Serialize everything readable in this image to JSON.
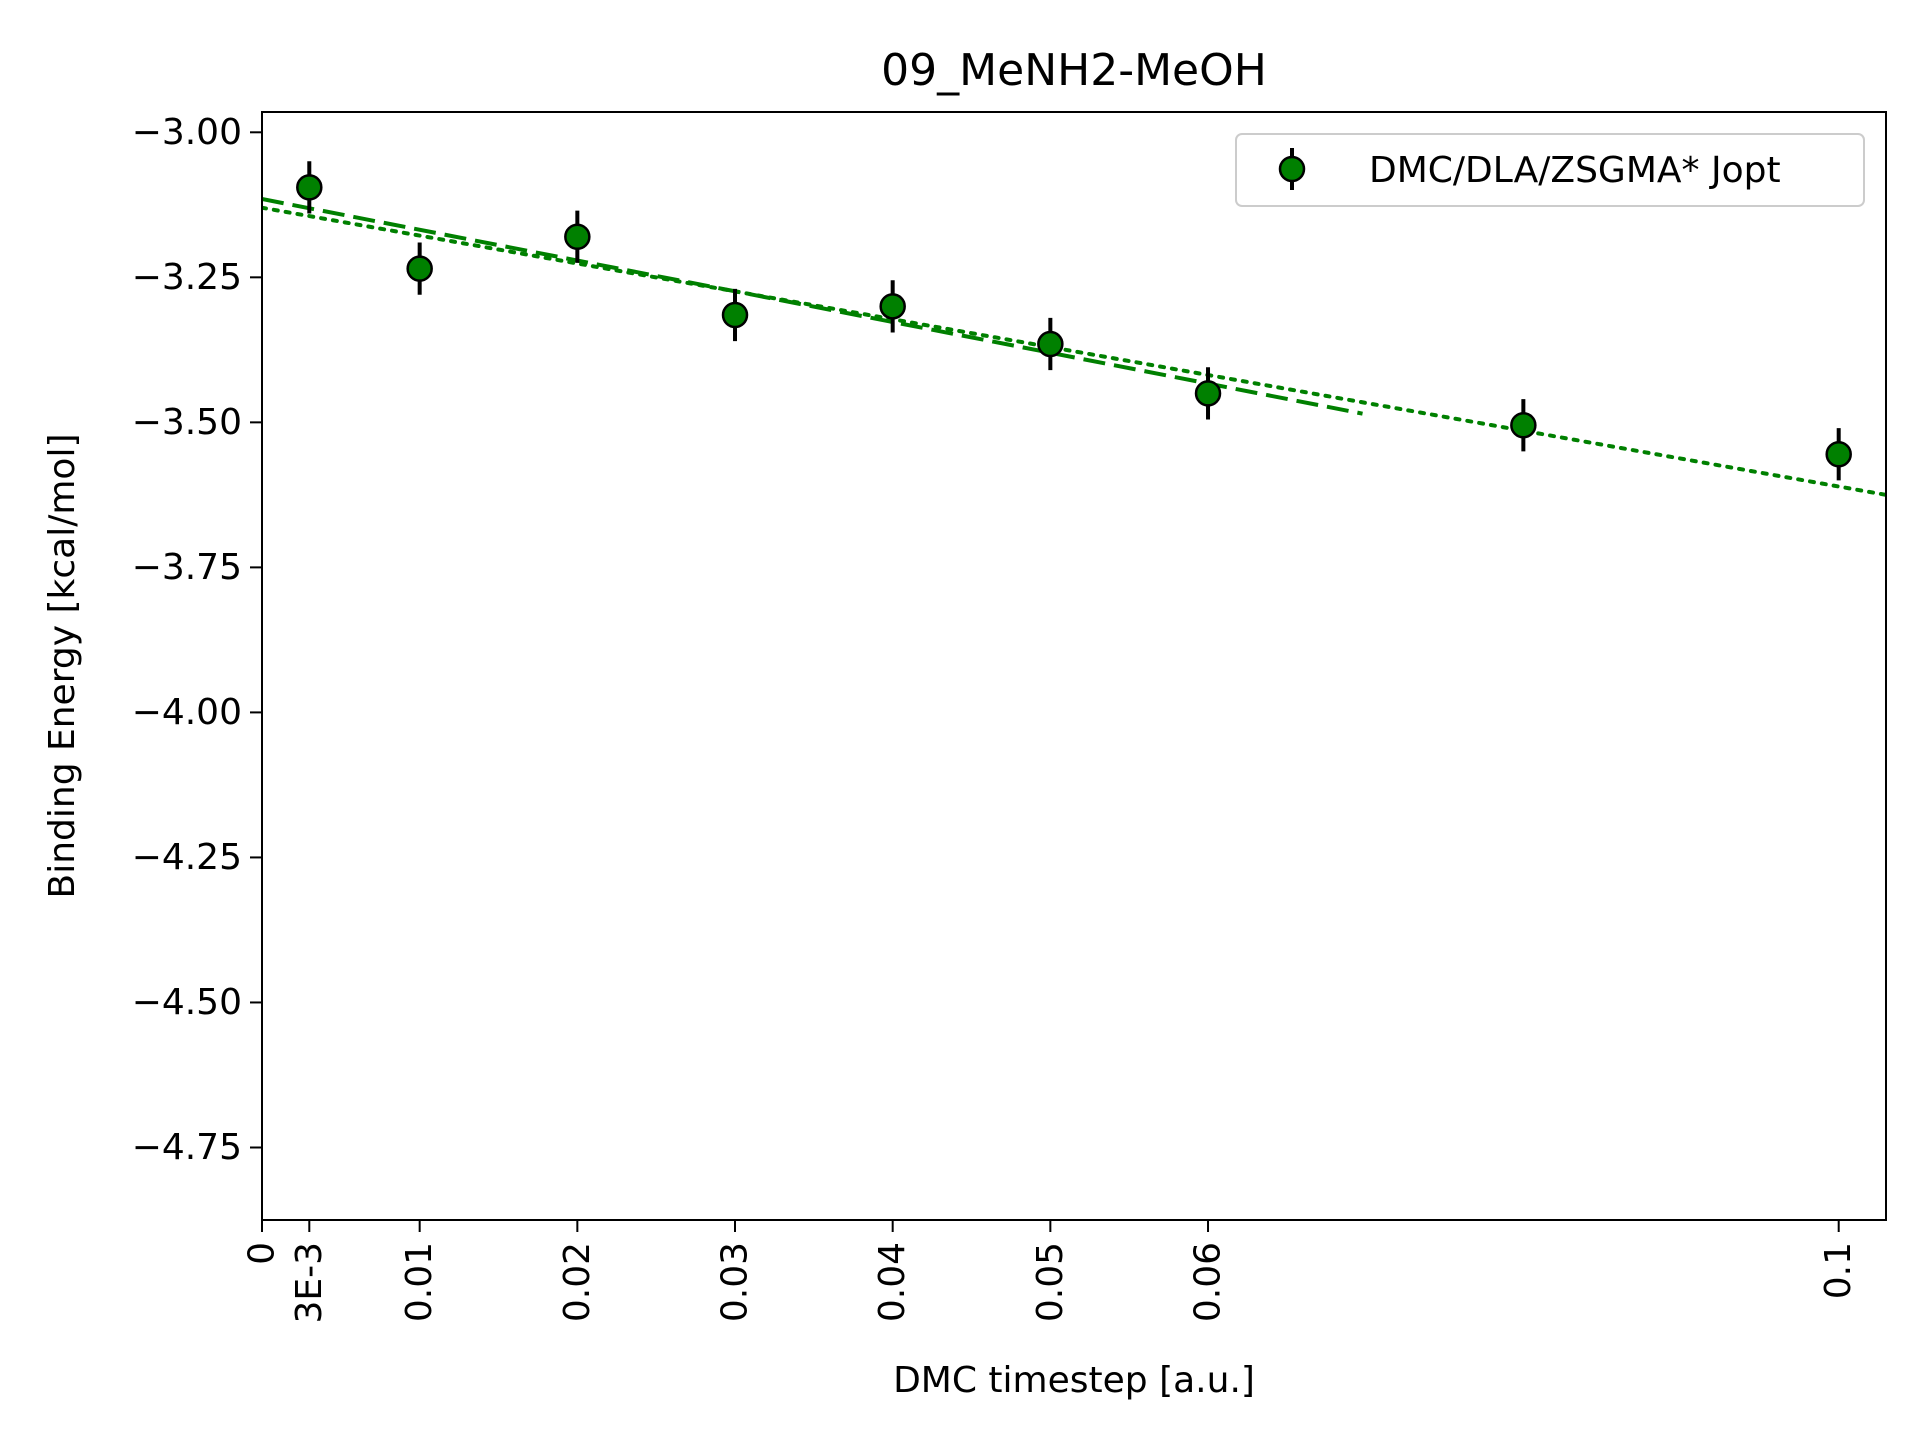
{
  "chart_data": {
    "type": "scatter",
    "title": "09_MeNH2-MeOH",
    "xlabel": "DMC timestep [a.u.]",
    "ylabel": "Binding Energy [kcal/mol]",
    "xlim": [
      0,
      0.103
    ],
    "ylim": [
      -4.875,
      -2.965
    ],
    "xticks": [
      {
        "value": 0,
        "label": "0"
      },
      {
        "value": 0.003,
        "label": "3E-3"
      },
      {
        "value": 0.01,
        "label": "0.01"
      },
      {
        "value": 0.02,
        "label": "0.02"
      },
      {
        "value": 0.03,
        "label": "0.03"
      },
      {
        "value": 0.04,
        "label": "0.04"
      },
      {
        "value": 0.05,
        "label": "0.05"
      },
      {
        "value": 0.06,
        "label": "0.06"
      },
      {
        "value": 0.1,
        "label": "0.1"
      }
    ],
    "yticks": [
      {
        "value": -3.0,
        "label": "−3.00"
      },
      {
        "value": -3.25,
        "label": "−3.25"
      },
      {
        "value": -3.5,
        "label": "−3.50"
      },
      {
        "value": -3.75,
        "label": "−3.75"
      },
      {
        "value": -4.0,
        "label": "−4.00"
      },
      {
        "value": -4.25,
        "label": "−4.25"
      },
      {
        "value": -4.5,
        "label": "−4.50"
      },
      {
        "value": -4.75,
        "label": "−4.75"
      }
    ],
    "legend_position": "top-right",
    "grid": false,
    "series": [
      {
        "name": "DMC/DLA/ZSGMA* Jopt",
        "color": "#008000",
        "edge_color": "#000000",
        "errorbar_color": "#000000",
        "points": [
          {
            "x": 0.003,
            "y": -3.095,
            "err": 0.045
          },
          {
            "x": 0.01,
            "y": -3.235,
            "err": 0.045
          },
          {
            "x": 0.02,
            "y": -3.18,
            "err": 0.045
          },
          {
            "x": 0.03,
            "y": -3.315,
            "err": 0.045
          },
          {
            "x": 0.04,
            "y": -3.3,
            "err": 0.045
          },
          {
            "x": 0.05,
            "y": -3.365,
            "err": 0.045
          },
          {
            "x": 0.06,
            "y": -3.45,
            "err": 0.045
          },
          {
            "x": 0.08,
            "y": -3.505,
            "err": 0.045
          },
          {
            "x": 0.1,
            "y": -3.555,
            "err": 0.045
          }
        ]
      }
    ],
    "fit_lines": [
      {
        "style": "dashed",
        "color": "#008000",
        "x": [
          0,
          0.0698
        ],
        "y": [
          -3.115,
          -3.485
        ]
      },
      {
        "style": "dotted",
        "color": "#008000",
        "x": [
          0,
          0.103
        ],
        "y": [
          -3.13,
          -3.625
        ]
      }
    ]
  }
}
